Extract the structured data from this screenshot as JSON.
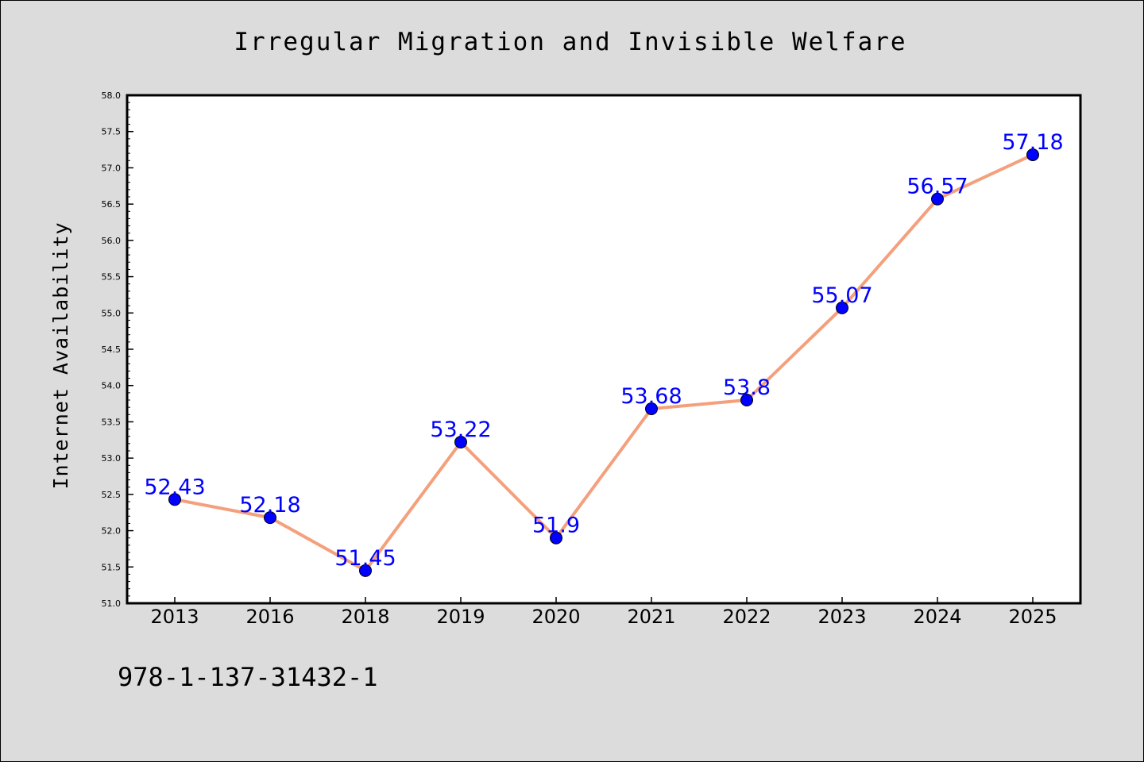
{
  "chart_data": {
    "type": "line",
    "title": "Irregular Migration and Invisible Welfare",
    "ylabel": "Internet Availability",
    "xlabel": "",
    "categories": [
      "2013",
      "2016",
      "2018",
      "2019",
      "2020",
      "2021",
      "2022",
      "2023",
      "2024",
      "2025"
    ],
    "series": [
      {
        "values": [
          52.43,
          52.18,
          51.45,
          53.22,
          51.9,
          53.68,
          53.8,
          55.07,
          56.57,
          57.18
        ],
        "data_labels": [
          "52.43",
          "52.18",
          "51.45",
          "53.22",
          "51.9",
          "53.68",
          "53.8",
          "55.07",
          "56.57",
          "57.18"
        ]
      }
    ],
    "ylim": [
      51.0,
      58.0
    ],
    "yticks": [
      "51.0",
      "51.5",
      "52.0",
      "52.5",
      "53.0",
      "53.5",
      "54.0",
      "54.5",
      "55.0",
      "55.5",
      "56.0",
      "56.5",
      "57.0",
      "57.5",
      "58.0"
    ],
    "grid": false,
    "colors": {
      "line": "#f4a07c",
      "marker": "#0000ff",
      "label": "#0000ff",
      "background": "#dcdcdc",
      "plot_background": "#ffffff"
    }
  },
  "annotation": {
    "isbn": "978-1-137-31432-1"
  }
}
